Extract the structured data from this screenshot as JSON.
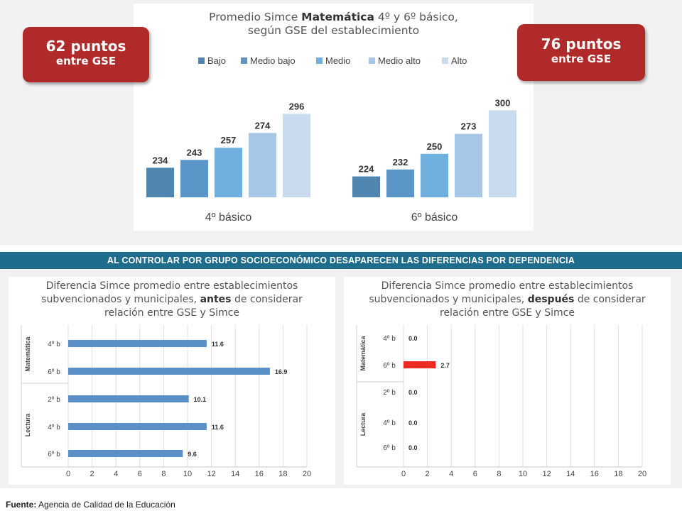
{
  "top": {
    "title_prefix": "Promedio Simce ",
    "title_bold": "Matemática",
    "title_suffix": " 4º y 6º básico,",
    "title_line2": "según GSE del establecimiento",
    "callout_left": {
      "big": "62 puntos",
      "small": "entre GSE"
    },
    "callout_right": {
      "big": "76 puntos",
      "small": "entre GSE"
    }
  },
  "banner": "AL CONTROLAR POR GRUPO SOCIOECONÓMICO DESAPARECEN LAS DIFERENCIAS POR DEPENDENCIA",
  "left_panel": {
    "title_l1": "Diferencia Simce promedio entre establecimientos",
    "title_l2_pre": "subvencionados y municipales, ",
    "title_l2_bold": "antes",
    "title_l2_post": " de considerar",
    "title_l3": "relación entre GSE y Simce"
  },
  "right_panel": {
    "title_l1": "Diferencia Simce promedio entre establecimientos",
    "title_l2_pre": "subvencionados y municipales, ",
    "title_l2_bold": "después",
    "title_l2_post": " de considerar",
    "title_l3": "relación entre GSE y Simce"
  },
  "source": {
    "label": "Fuente:",
    "text": " Agencia de Calidad de la Educación"
  },
  "colors": {
    "gse": [
      "#5085b0",
      "#5c96c8",
      "#6fb0de",
      "#a6c7e6",
      "#c9dbef"
    ],
    "hbar": "#5b8fc7",
    "highlight": "#ee2a24",
    "callout": "#b02a2a",
    "banner": "#1f6d8c"
  },
  "chart_data": [
    {
      "type": "bar",
      "categories": [
        "4º básico",
        "6º básico"
      ],
      "series": [
        {
          "name": "Bajo",
          "values": [
            234,
            224
          ]
        },
        {
          "name": "Medio bajo",
          "values": [
            243,
            232
          ]
        },
        {
          "name": "Medio",
          "values": [
            257,
            250
          ]
        },
        {
          "name": "Medio alto",
          "values": [
            274,
            273
          ]
        },
        {
          "name": "Alto",
          "values": [
            296,
            300
          ]
        }
      ],
      "legend": "top"
    },
    {
      "type": "bar",
      "orientation": "horizontal",
      "groups": [
        {
          "name": "Matemática",
          "items": [
            {
              "label": "4º b",
              "value": 11.6
            },
            {
              "label": "6º b",
              "value": 16.9
            }
          ]
        },
        {
          "name": "Lectura",
          "items": [
            {
              "label": "2º b",
              "value": 10.1
            },
            {
              "label": "4º b",
              "value": 11.6
            },
            {
              "label": "6º b",
              "value": 9.6
            }
          ]
        }
      ],
      "xlim": [
        0,
        20
      ],
      "xticks": [
        0,
        2,
        4,
        6,
        8,
        10,
        12,
        14,
        16,
        18,
        20
      ],
      "grid": true
    },
    {
      "type": "bar",
      "orientation": "horizontal",
      "groups": [
        {
          "name": "Matemática",
          "items": [
            {
              "label": "4º b",
              "value": 0.0
            },
            {
              "label": "6º b",
              "value": 2.7
            }
          ]
        },
        {
          "name": "Lectura",
          "items": [
            {
              "label": "2º b",
              "value": 0.0
            },
            {
              "label": "4º b",
              "value": 0.0
            },
            {
              "label": "6º b",
              "value": 0.0
            }
          ]
        }
      ],
      "xlim": [
        0,
        20
      ],
      "xticks": [
        0,
        2,
        4,
        6,
        8,
        10,
        12,
        14,
        16,
        18,
        20
      ],
      "grid": true,
      "highlight": "6º b Matemática"
    }
  ]
}
